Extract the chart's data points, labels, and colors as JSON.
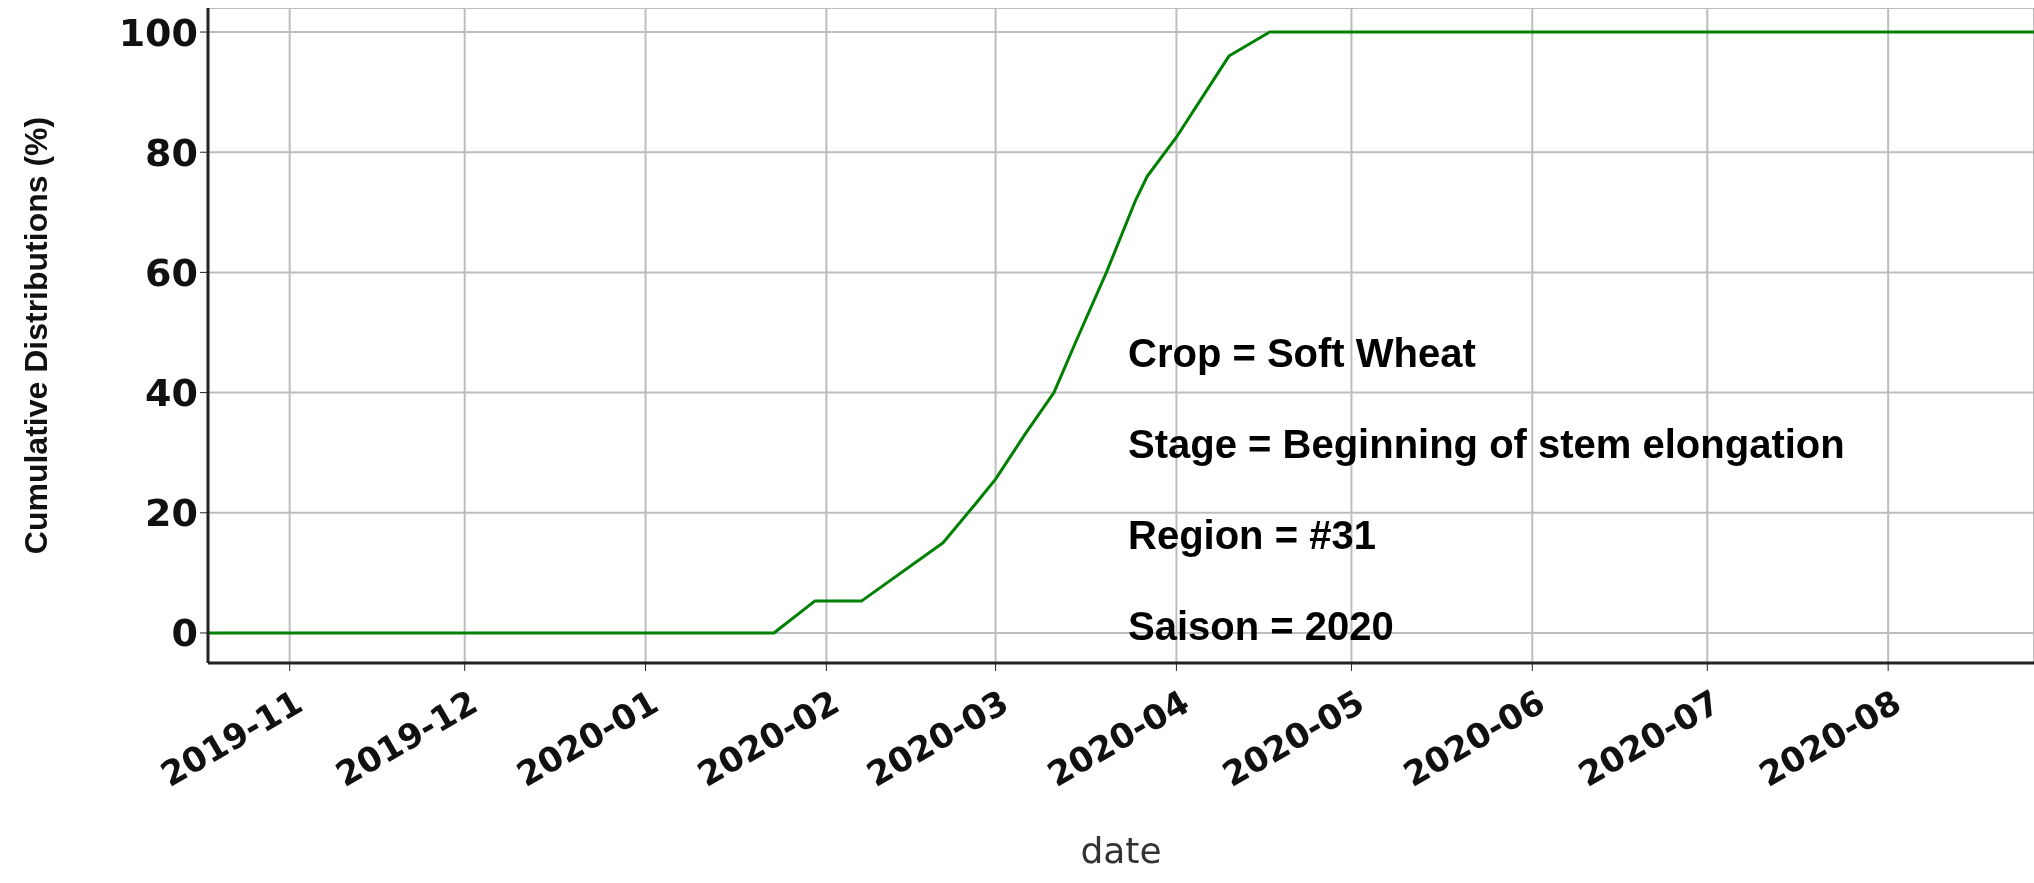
{
  "chart_data": {
    "type": "line",
    "xlabel": "date",
    "ylabel": "Cumulative Distributions (%)",
    "x": [
      "2019-10-18",
      "2020-01-23",
      "2020-01-30",
      "2020-02-07",
      "2020-02-21",
      "2020-02-27",
      "2020-03-01",
      "2020-03-06",
      "2020-03-11",
      "2020-03-15",
      "2020-03-20",
      "2020-03-25",
      "2020-03-27",
      "2020-04-01",
      "2020-04-05",
      "2020-04-10",
      "2020-04-17",
      "2020-08-26"
    ],
    "series": [
      {
        "color": "#008000",
        "values": [
          0,
          0,
          5.3,
          5.3,
          15,
          22,
          25.6,
          33,
          40,
          49,
          60,
          72,
          76,
          82.5,
          88.5,
          96,
          100,
          100
        ]
      }
    ],
    "xlim": [
      "2019-10-18",
      "2020-08-26"
    ],
    "xticks": [
      "2019-11",
      "2019-12",
      "2020-01",
      "2020-02",
      "2020-03",
      "2020-04",
      "2020-05",
      "2020-06",
      "2020-07",
      "2020-08"
    ],
    "ylim": [
      -5,
      104
    ],
    "yticks": [
      0,
      20,
      40,
      60,
      80,
      100
    ],
    "grid": true,
    "marker": "none",
    "line_style": "solid",
    "annotations": [
      "Crop = Soft Wheat",
      "Stage = Beginning of stem elongation",
      "Region = #31",
      "Saison = 2020"
    ]
  }
}
